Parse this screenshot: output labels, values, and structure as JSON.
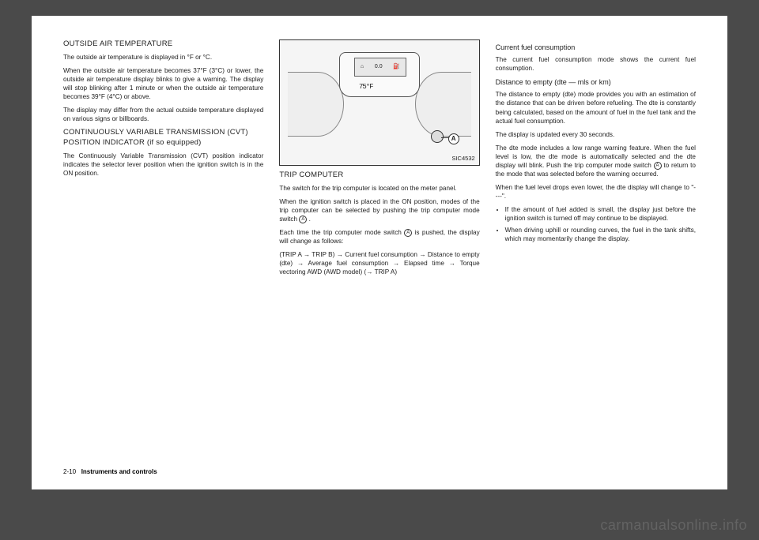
{
  "col1": {
    "h1": "OUTSIDE AIR TEMPERATURE",
    "p1": "The outside air temperature is displayed in °F or °C.",
    "p2": "When the outside air temperature becomes 37°F (3°C) or lower, the outside air temperature display blinks to give a warning. The display will stop blinking after 1 minute or when the outside air temperature becomes 39°F (4°C) or above.",
    "p3": "The display may differ from the actual outside temperature displayed on various signs or billboards.",
    "h2": "CONTINUOUSLY VARIABLE TRANSMISSION (CVT) POSITION INDICATOR (if so equipped)",
    "p4": "The Continuously Variable Transmission (CVT) position indicator indicates the selector lever position when the ignition switch is in the ON position."
  },
  "col2": {
    "figLabel": "SIC4532",
    "tempReadout": "75°F",
    "h1": "TRIP COMPUTER",
    "p1": "The switch for the trip computer is located on the meter panel.",
    "p2": "When the ignition switch is placed in the ON position, modes of the trip computer can be selected by pushing the trip computer mode switch ",
    "p2b": " .",
    "p3": "Each time the trip computer mode switch ",
    "p3b": " is pushed, the display will change as follows:",
    "p4": "(TRIP A → TRIP B) → Current fuel consumption → Distance to empty (dte) → Average fuel consumption → Elapsed time → Torque vectoring AWD (AWD model) (→ TRIP A)"
  },
  "col3": {
    "h1": "Current fuel consumption",
    "p1": "The current fuel consumption mode shows the current fuel consumption.",
    "h2": "Distance to empty (dte — mls or km)",
    "p2": "The distance to empty (dte) mode provides you with an estimation of the distance that can be driven before refueling. The dte is constantly being calculated, based on the amount of fuel in the fuel tank and the actual fuel consumption.",
    "p3": "The display is updated every 30 seconds.",
    "p4": "The dte mode includes a low range warning feature. When the fuel level is low, the dte mode is automatically selected and the dte display will blink. Push the trip computer mode switch ",
    "p4b": " to return to the mode that was selected before the warning occurred.",
    "p5": "When the fuel level drops even lower, the dte display will change to \"----\".",
    "li1": "If the amount of fuel added is small, the display just before the ignition switch is turned off may continue to be displayed.",
    "li2": "When driving uphill or rounding curves, the fuel in the tank shifts, which may momentarily change the display."
  },
  "footer": {
    "pageNum": "2-10",
    "section": "Instruments and controls"
  },
  "watermark": "carmanualsonline.info",
  "markerA": "A"
}
